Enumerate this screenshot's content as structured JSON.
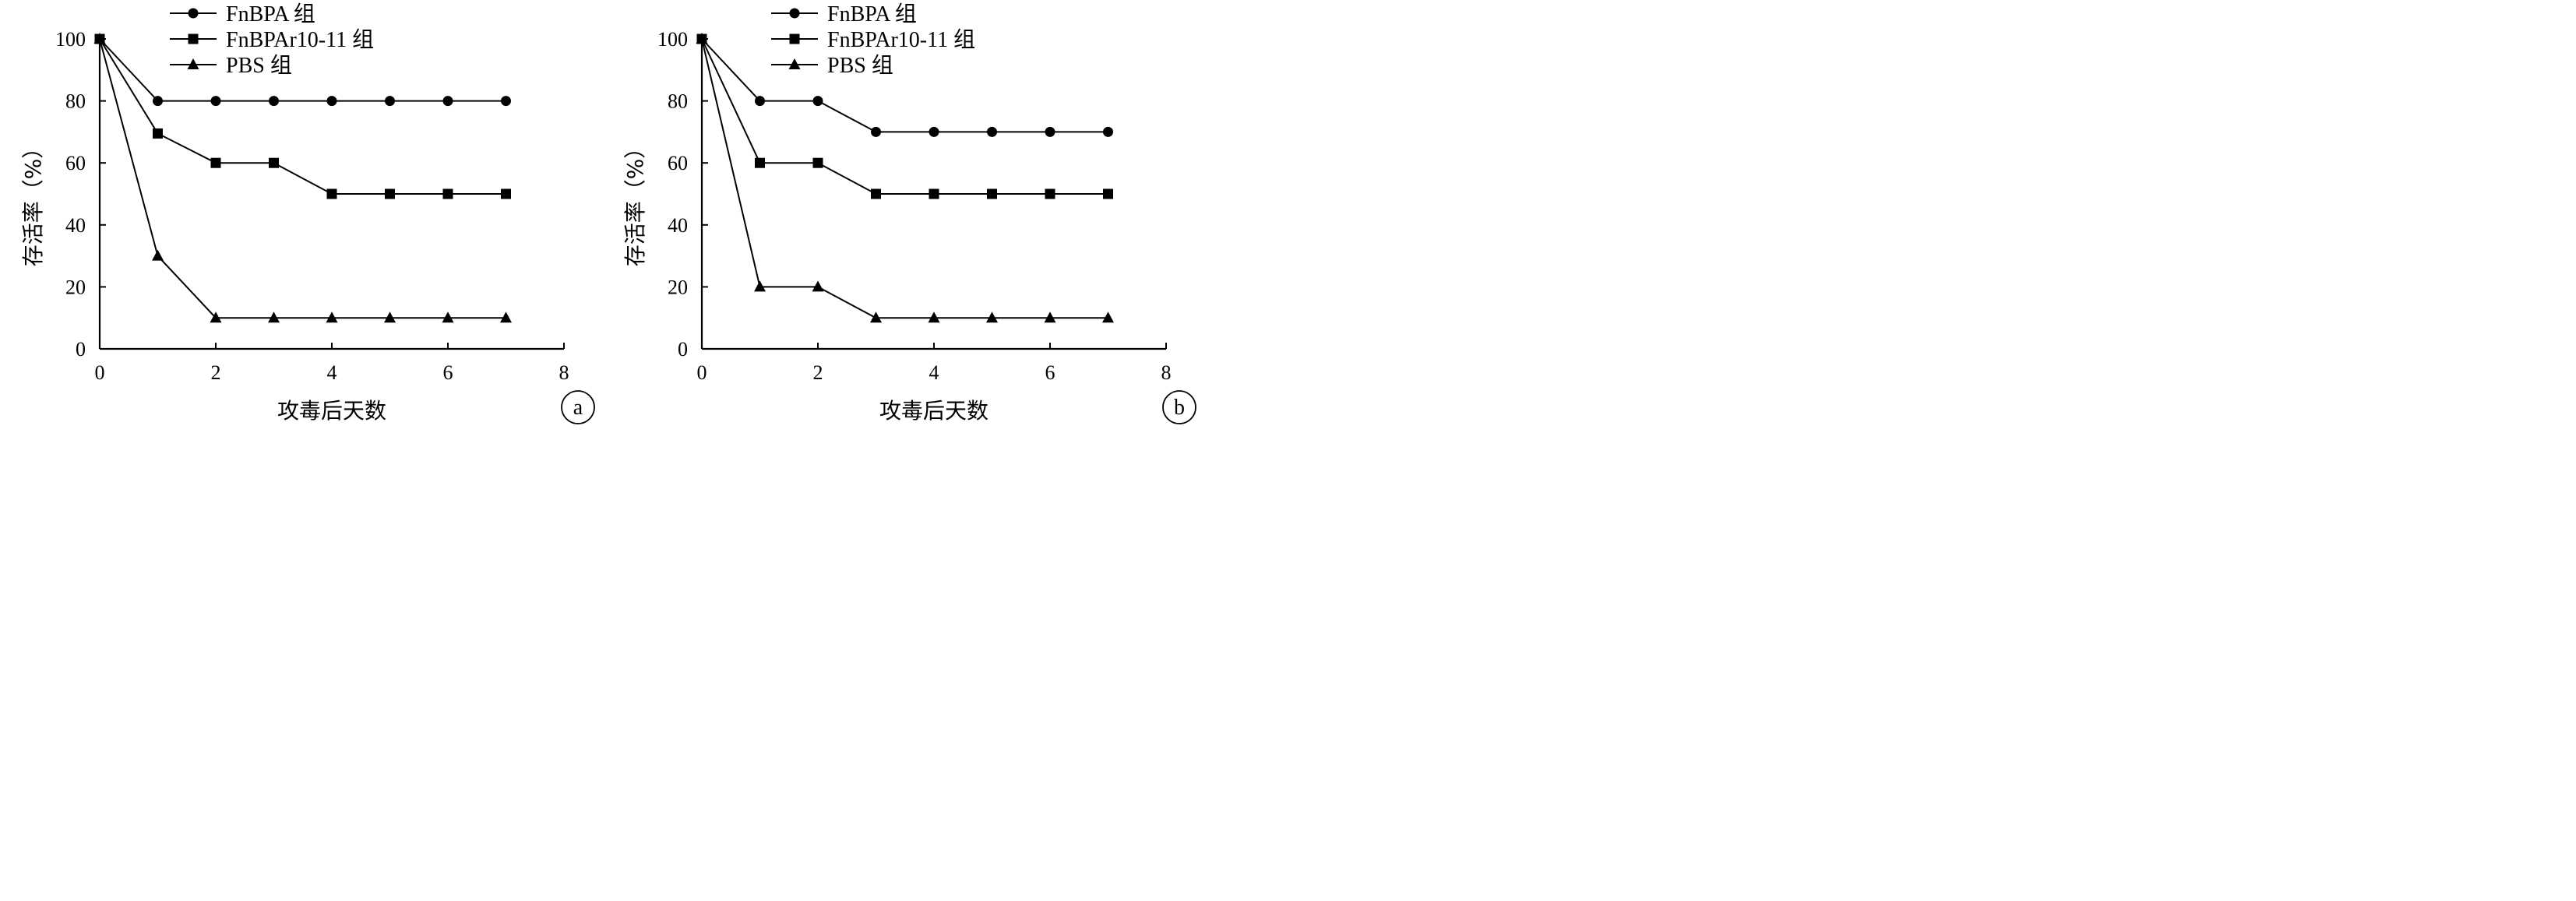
{
  "chart_data": [
    {
      "type": "line",
      "panel_label": "a",
      "xlabel": "攻毒后天数",
      "ylabel": "存活率（%）",
      "xlim": [
        0,
        8
      ],
      "ylim": [
        0,
        100
      ],
      "xticks": [
        0,
        2,
        4,
        6,
        8
      ],
      "yticks": [
        0,
        20,
        40,
        60,
        80,
        100
      ],
      "x": [
        0,
        1,
        2,
        3,
        4,
        5,
        6,
        7
      ],
      "legend_position": "top-left",
      "series": [
        {
          "name": "FnBPA 组",
          "marker": "circle",
          "values": [
            100,
            80,
            80,
            80,
            80,
            80,
            80,
            80
          ]
        },
        {
          "name": "FnBPAr10-11 组",
          "marker": "square",
          "values": [
            100,
            69.5,
            60,
            60,
            50,
            50,
            50,
            50
          ]
        },
        {
          "name": "PBS 组",
          "marker": "triangle",
          "values": [
            100,
            30,
            10,
            10,
            10,
            10,
            10,
            10
          ]
        }
      ]
    },
    {
      "type": "line",
      "panel_label": "b",
      "xlabel": "攻毒后天数",
      "ylabel": "存活率（%）",
      "xlim": [
        0,
        8
      ],
      "ylim": [
        0,
        100
      ],
      "xticks": [
        0,
        2,
        4,
        6,
        8
      ],
      "yticks": [
        0,
        20,
        40,
        60,
        80,
        100
      ],
      "x": [
        0,
        1,
        2,
        3,
        4,
        5,
        6,
        7
      ],
      "legend_position": "top-left",
      "series": [
        {
          "name": "FnBPA 组",
          "marker": "circle",
          "values": [
            100,
            80,
            80,
            70,
            70,
            70,
            70,
            70
          ]
        },
        {
          "name": "FnBPAr10-11 组",
          "marker": "square",
          "values": [
            100,
            60,
            60,
            50,
            50,
            50,
            50,
            50
          ]
        },
        {
          "name": "PBS 组",
          "marker": "triangle",
          "values": [
            100,
            20,
            20,
            10,
            10,
            10,
            10,
            10
          ]
        }
      ]
    }
  ]
}
